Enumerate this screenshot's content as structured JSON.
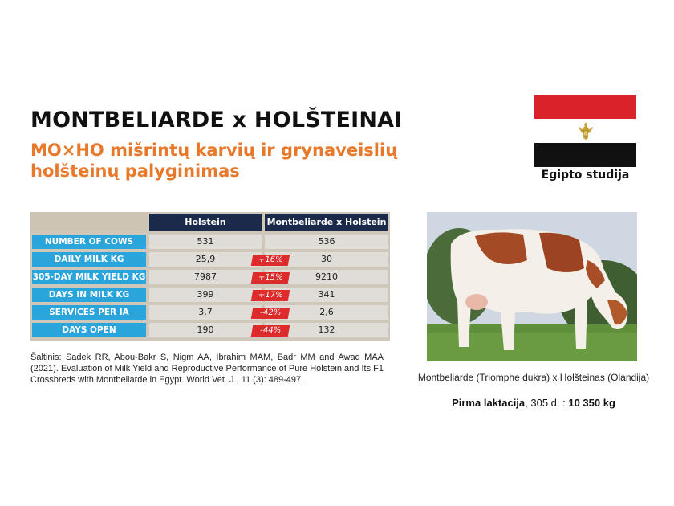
{
  "title": "MONTBELIARDE x HOLŠTEINAI",
  "subtitle": "MO×HO mišrintų karvių ir grynaveislių holšteinų palyginimas",
  "study_label": "Egipto studija",
  "colors": {
    "accent_orange": "#e8782a",
    "header_navy": "#1b2a4a",
    "row_blue": "#2aa5dc",
    "badge_red": "#dd2a2a"
  },
  "flag": {
    "country": "Egypt",
    "icon": "egypt-flag-icon"
  },
  "table": {
    "headers": [
      "Holstein",
      "Montbeliarde x Holstein"
    ],
    "rows": [
      {
        "label": "NUMBER OF COWS",
        "holstein": "531",
        "diff": "",
        "cross": "536"
      },
      {
        "label": "DAILY MILK KG",
        "holstein": "25,9",
        "diff": "+16%",
        "cross": "30"
      },
      {
        "label": "305-DAY MILK YIELD KG",
        "holstein": "7987",
        "diff": "+15%",
        "cross": "9210"
      },
      {
        "label": "DAYS IN MILK KG",
        "holstein": "399",
        "diff": "+17%",
        "cross": "341"
      },
      {
        "label": "SERVICES PER IA",
        "holstein": "3,7",
        "diff": "-42%",
        "cross": "2,6"
      },
      {
        "label": "DAYS OPEN",
        "holstein": "190",
        "diff": "-44%",
        "cross": "132"
      }
    ]
  },
  "source": "Šaltinis: Sadek RR, Abou-Bakr S, Nigm AA, Ibrahim MAM, Badr MM and Awad MAA (2021). Evaluation of Milk Yield and Reproductive Performance of Pure Holstein and Its F1 Crossbreds with Montbeliarde in Egypt. World Vet. J., 11 (3): 489-497.",
  "photo": {
    "icon": "cow-photo"
  },
  "caption": {
    "line1": "Montbeliarde (Triomphe dukra) x Holšteinas (Olandija)",
    "line2_bold1": "Pirma laktacija",
    "line2_mid": ", 305 d. : ",
    "line2_bold2": "10 350 kg"
  }
}
